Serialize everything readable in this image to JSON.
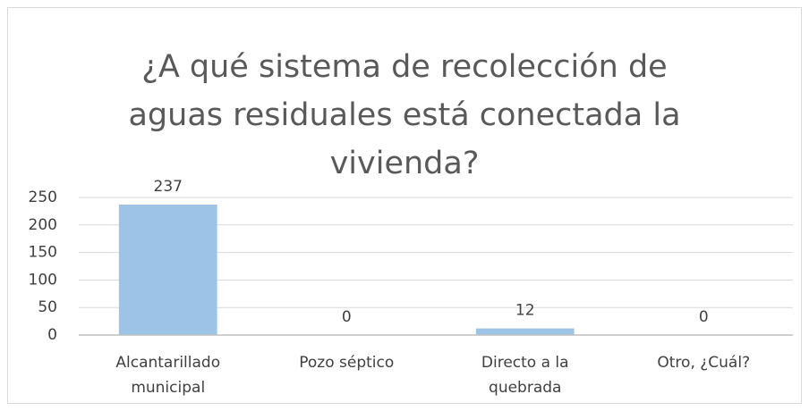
{
  "chart_data": {
    "type": "bar",
    "title": "¿A qué sistema de recolección de aguas residuales está conectada la vivienda?",
    "categories": [
      "Alcantarillado municipal",
      "Pozo séptico",
      "Directo a la quebrada",
      "Otro, ¿Cuál?"
    ],
    "values": [
      237,
      0,
      12,
      0
    ],
    "color": "#9dc3e6",
    "ylim": [
      0,
      250
    ],
    "yticks": [
      0,
      50,
      100,
      150,
      200,
      250
    ],
    "grid": true
  }
}
